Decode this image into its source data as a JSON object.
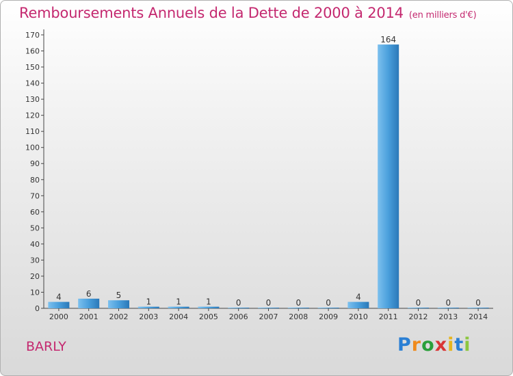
{
  "chart_data": {
    "type": "bar",
    "title": "Remboursements Annuels de la Dette de 2000 à 2014",
    "unit": "(en milliers d'€)",
    "categories": [
      "2000",
      "2001",
      "2002",
      "2003",
      "2004",
      "2005",
      "2006",
      "2007",
      "2008",
      "2009",
      "2010",
      "2011",
      "2012",
      "2013",
      "2014"
    ],
    "values": [
      4,
      6,
      5,
      1,
      1,
      1,
      0,
      0,
      0,
      0,
      4,
      164,
      0,
      0,
      0
    ],
    "ylim": [
      0,
      170
    ],
    "yticks": [
      0,
      10,
      20,
      30,
      40,
      50,
      60,
      70,
      80,
      90,
      100,
      110,
      120,
      130,
      140,
      150,
      160,
      170
    ],
    "grid": false
  },
  "commune": "BARLY",
  "logo": {
    "parts": [
      "P",
      "r",
      "o",
      "x",
      "i",
      "t",
      "i"
    ]
  },
  "colors": {
    "title": "#c4286f",
    "bar_top": "#5aafe8",
    "bar_bottom": "#2f7fc0"
  }
}
